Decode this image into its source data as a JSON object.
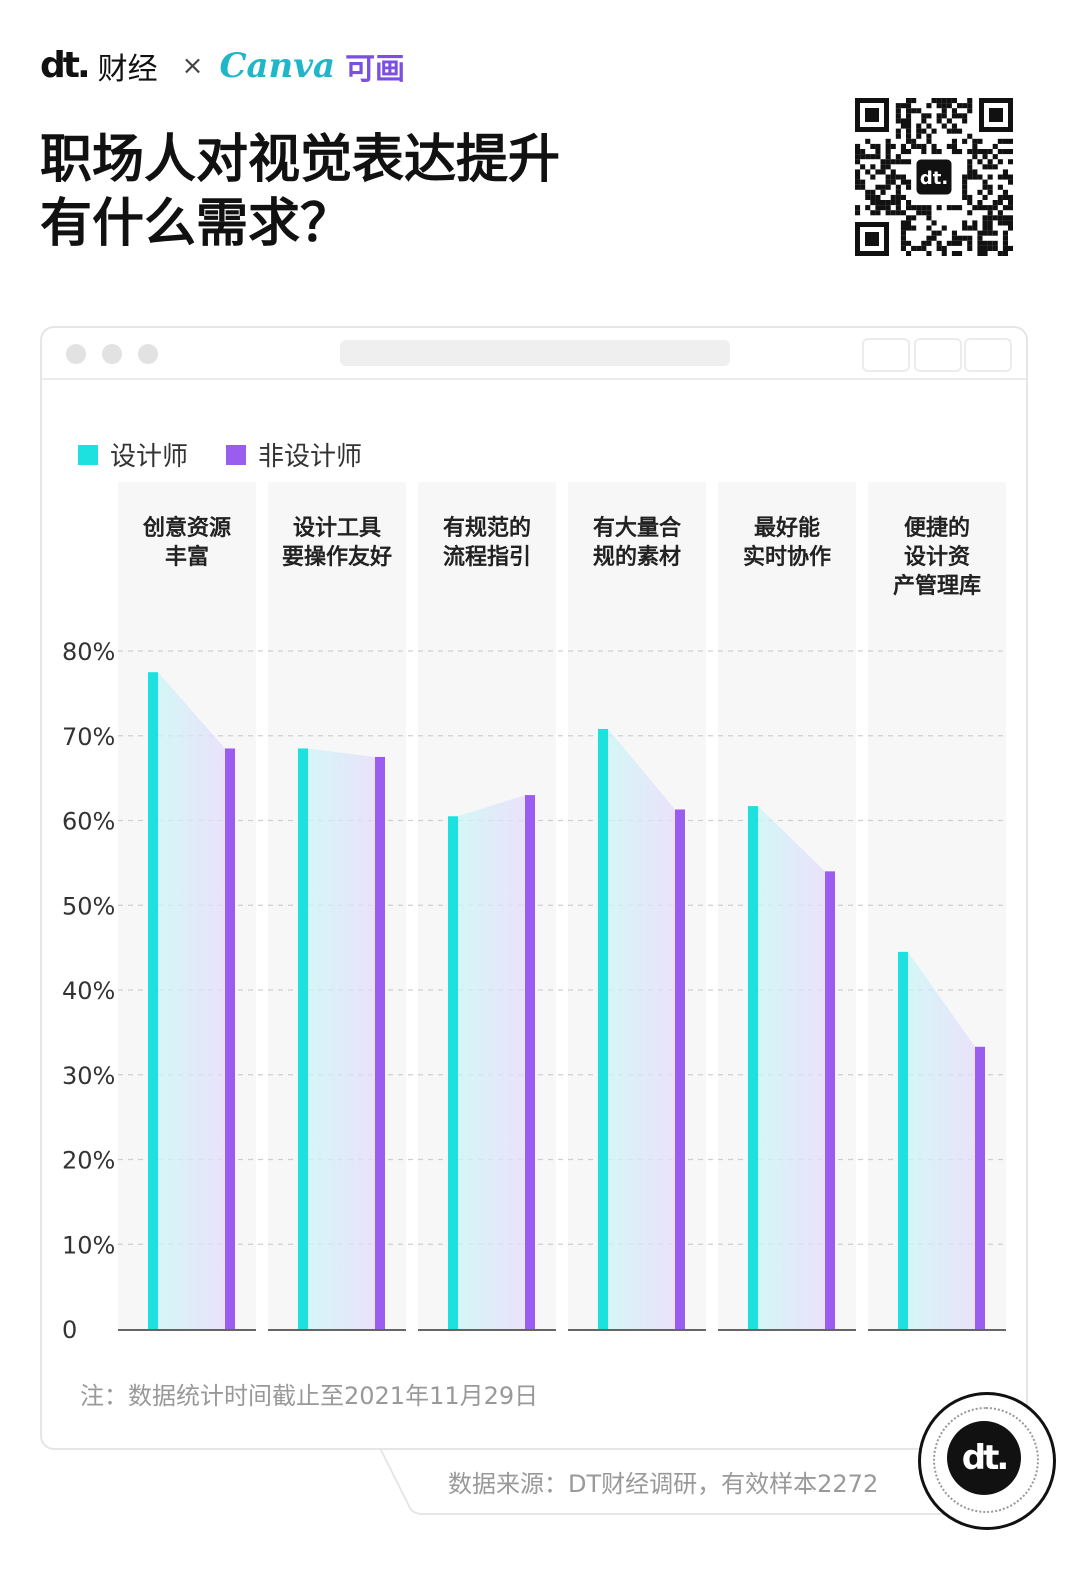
{
  "brand": {
    "dt_logo": "dt.",
    "dt_name": "财经",
    "times": "×",
    "canva": "Canva",
    "canva_cn": "可画"
  },
  "title_line1": "职场人对视觉表达提升",
  "title_line2": "有什么需求？",
  "colors": {
    "designer": "#1de1df",
    "non_designer": "#9b5cf0"
  },
  "chart_data": {
    "type": "bar",
    "categories": [
      [
        "创意资源",
        "丰富"
      ],
      [
        "设计工具",
        "要操作友好"
      ],
      [
        "有规范的",
        "流程指引"
      ],
      [
        "有大量合",
        "规的素材"
      ],
      [
        "最好能",
        "实时协作"
      ],
      [
        "便捷的",
        "设计资",
        "产管理库"
      ]
    ],
    "series": [
      {
        "name": "设计师",
        "values": [
          77.5,
          68.5,
          60.5,
          70.8,
          61.7,
          44.5
        ]
      },
      {
        "name": "非设计师",
        "values": [
          68.5,
          67.5,
          63.0,
          61.3,
          54.0,
          33.3
        ]
      }
    ],
    "y_ticks": [
      "0",
      "10%",
      "20%",
      "30%",
      "40%",
      "50%",
      "60%",
      "70%",
      "80%"
    ],
    "ylim": [
      0,
      80
    ],
    "grid": "dashed horizontal",
    "legend": "top-left"
  },
  "note": "注：数据统计时间截止至2021年11月29日",
  "source": "数据来源：DT财经调研，有效样本2272",
  "badge_logo": "dt."
}
